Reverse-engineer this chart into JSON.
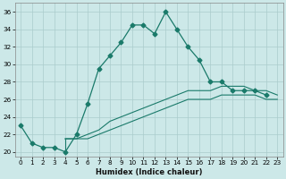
{
  "title": "",
  "xlabel": "Humidex (Indice chaleur)",
  "bg_color": "#cce8e8",
  "grid_color": "#aacccc",
  "line_color": "#1a7a6a",
  "xlim": [
    -0.5,
    23.5
  ],
  "ylim": [
    19.5,
    37
  ],
  "yticks": [
    20,
    22,
    24,
    26,
    28,
    30,
    32,
    34,
    36
  ],
  "xticks": [
    0,
    1,
    2,
    3,
    4,
    5,
    6,
    7,
    8,
    9,
    10,
    11,
    12,
    13,
    14,
    15,
    16,
    17,
    18,
    19,
    20,
    21,
    22,
    23
  ],
  "series1_x": [
    0,
    1,
    2,
    3,
    4,
    5,
    6,
    7,
    8,
    9,
    10,
    11,
    12,
    13,
    14,
    15,
    16,
    17,
    18,
    19,
    20,
    21,
    22
  ],
  "series1_y": [
    23,
    21,
    20.5,
    20.5,
    20,
    22,
    25.5,
    29.5,
    31,
    32.5,
    34.5,
    34.5,
    33.5,
    36,
    34,
    32,
    30.5,
    28,
    28,
    27,
    27,
    27,
    26.5
  ],
  "series2_x": [
    4,
    5,
    6,
    7,
    8,
    9,
    10,
    11,
    12,
    13,
    14,
    15,
    16,
    17,
    18,
    19,
    20,
    21,
    22,
    23
  ],
  "series2_y": [
    21.5,
    21.5,
    22,
    22.5,
    23.5,
    24,
    24.5,
    25,
    25.5,
    26,
    26.5,
    27,
    27,
    27,
    27.5,
    27.5,
    27.5,
    27,
    27,
    26.5
  ],
  "series3_x": [
    4,
    5,
    6,
    7,
    8,
    9,
    10,
    11,
    12,
    13,
    14,
    15,
    16,
    17,
    18,
    19,
    20,
    21,
    22,
    23
  ],
  "series3_y": [
    21.5,
    21.5,
    21.5,
    22,
    22.5,
    23,
    23.5,
    24,
    24.5,
    25,
    25.5,
    26,
    26,
    26,
    26.5,
    26.5,
    26.5,
    26.5,
    26,
    26
  ]
}
